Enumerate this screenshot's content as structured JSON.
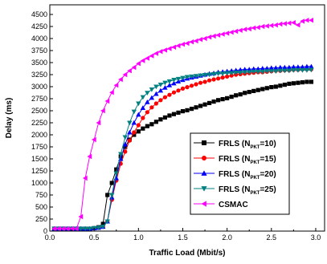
{
  "chart_data": {
    "type": "line",
    "xlabel": "Traffic Load (Mbit/s)",
    "ylabel": "Delay (ms)",
    "xlim": [
      0.0,
      3.1
    ],
    "ylim": [
      0,
      4700
    ],
    "x_ticks": [
      "0.0",
      "0.5",
      "1.0",
      "1.5",
      "2.0",
      "2.5",
      "3.0"
    ],
    "y_ticks": [
      "0",
      "250",
      "500",
      "750",
      "1000",
      "1250",
      "1500",
      "1750",
      "2000",
      "2250",
      "2500",
      "2750",
      "3000",
      "3250",
      "3500",
      "3750",
      "4000",
      "4250",
      "4500"
    ],
    "legend_position": "center-right",
    "series": [
      {
        "name": "FRLS (N_PKT=10)",
        "legend_main": "FRLS (N",
        "legend_sub": "PKT",
        "legend_tail": "=10)",
        "color": "#000000",
        "marker": "square",
        "x": [
          0.05,
          0.1,
          0.15,
          0.2,
          0.25,
          0.3,
          0.35,
          0.4,
          0.45,
          0.5,
          0.55,
          0.6,
          0.65,
          0.7,
          0.75,
          0.8,
          0.85,
          0.9,
          0.95,
          1.0,
          1.05,
          1.1,
          1.15,
          1.2,
          1.25,
          1.3,
          1.35,
          1.4,
          1.45,
          1.5,
          1.55,
          1.6,
          1.65,
          1.7,
          1.75,
          1.8,
          1.85,
          1.9,
          1.95,
          2.0,
          2.05,
          2.1,
          2.15,
          2.2,
          2.25,
          2.3,
          2.35,
          2.4,
          2.45,
          2.5,
          2.55,
          2.6,
          2.65,
          2.7,
          2.75,
          2.8,
          2.85,
          2.9,
          2.95
        ],
        "values": [
          50,
          50,
          50,
          50,
          50,
          50,
          50,
          50,
          50,
          60,
          80,
          150,
          750,
          1000,
          1280,
          1550,
          1750,
          1900,
          2000,
          2070,
          2130,
          2180,
          2220,
          2270,
          2320,
          2360,
          2400,
          2430,
          2460,
          2490,
          2510,
          2540,
          2570,
          2600,
          2630,
          2660,
          2690,
          2720,
          2740,
          2760,
          2790,
          2820,
          2840,
          2870,
          2890,
          2910,
          2930,
          2950,
          2970,
          2990,
          3000,
          3020,
          3040,
          3060,
          3070,
          3080,
          3090,
          3100,
          3100
        ]
      },
      {
        "name": "FRLS (N_PKT=15)",
        "legend_main": "FRLS (N",
        "legend_sub": "PKT",
        "legend_tail": "=15)",
        "color": "#ff0000",
        "marker": "circle",
        "x": [
          0.05,
          0.1,
          0.15,
          0.2,
          0.25,
          0.3,
          0.35,
          0.4,
          0.45,
          0.5,
          0.55,
          0.6,
          0.65,
          0.7,
          0.75,
          0.8,
          0.85,
          0.9,
          0.95,
          1.0,
          1.05,
          1.1,
          1.15,
          1.2,
          1.25,
          1.3,
          1.35,
          1.4,
          1.45,
          1.5,
          1.55,
          1.6,
          1.65,
          1.7,
          1.75,
          1.8,
          1.85,
          1.9,
          1.95,
          2.0,
          2.05,
          2.1,
          2.15,
          2.2,
          2.25,
          2.3,
          2.35,
          2.4,
          2.45,
          2.5,
          2.55,
          2.6,
          2.65,
          2.7,
          2.75,
          2.8,
          2.85,
          2.9,
          2.95
        ],
        "values": [
          50,
          50,
          50,
          50,
          50,
          50,
          50,
          50,
          50,
          60,
          70,
          90,
          200,
          650,
          1050,
          1400,
          1650,
          1880,
          2050,
          2200,
          2350,
          2470,
          2570,
          2650,
          2720,
          2780,
          2830,
          2880,
          2920,
          2960,
          2990,
          3020,
          3050,
          3080,
          3100,
          3130,
          3150,
          3170,
          3190,
          3210,
          3230,
          3250,
          3260,
          3270,
          3280,
          3290,
          3300,
          3300,
          3310,
          3320,
          3330,
          3330,
          3340,
          3340,
          3350,
          3350,
          3360,
          3360,
          3360
        ]
      },
      {
        "name": "FRLS (N_PKT=20)",
        "legend_main": "FRLS (N",
        "legend_sub": "PKT",
        "legend_tail": "=20)",
        "color": "#0000ff",
        "marker": "triangle-up",
        "x": [
          0.05,
          0.1,
          0.15,
          0.2,
          0.25,
          0.3,
          0.35,
          0.4,
          0.45,
          0.5,
          0.55,
          0.6,
          0.65,
          0.7,
          0.75,
          0.8,
          0.85,
          0.9,
          0.95,
          1.0,
          1.05,
          1.1,
          1.15,
          1.2,
          1.25,
          1.3,
          1.35,
          1.4,
          1.45,
          1.5,
          1.55,
          1.6,
          1.65,
          1.7,
          1.75,
          1.8,
          1.85,
          1.9,
          1.95,
          2.0,
          2.05,
          2.1,
          2.15,
          2.2,
          2.25,
          2.3,
          2.35,
          2.4,
          2.45,
          2.5,
          2.55,
          2.6,
          2.65,
          2.7,
          2.75,
          2.8,
          2.85,
          2.9,
          2.95
        ],
        "values": [
          50,
          50,
          50,
          50,
          50,
          50,
          50,
          50,
          50,
          60,
          70,
          90,
          200,
          700,
          1100,
          1500,
          1800,
          2050,
          2250,
          2420,
          2560,
          2680,
          2770,
          2850,
          2920,
          2980,
          3030,
          3070,
          3110,
          3140,
          3170,
          3190,
          3210,
          3230,
          3250,
          3270,
          3280,
          3300,
          3310,
          3320,
          3330,
          3340,
          3350,
          3360,
          3360,
          3370,
          3370,
          3380,
          3380,
          3390,
          3390,
          3400,
          3400,
          3400,
          3410,
          3410,
          3410,
          3420,
          3420
        ]
      },
      {
        "name": "FRLS (N_PKT=25)",
        "legend_main": "FRLS (N",
        "legend_sub": "PKT",
        "legend_tail": "=25)",
        "color": "#008080",
        "marker": "triangle-down",
        "x": [
          0.05,
          0.1,
          0.15,
          0.2,
          0.25,
          0.3,
          0.35,
          0.4,
          0.45,
          0.5,
          0.55,
          0.6,
          0.65,
          0.7,
          0.75,
          0.8,
          0.85,
          0.9,
          0.95,
          1.0,
          1.05,
          1.1,
          1.15,
          1.2,
          1.25,
          1.3,
          1.35,
          1.4,
          1.45,
          1.5,
          1.55,
          1.6,
          1.65,
          1.7,
          1.75,
          1.8,
          1.85,
          1.9,
          1.95,
          2.0,
          2.05,
          2.1,
          2.15,
          2.2,
          2.25,
          2.3,
          2.35,
          2.4,
          2.45,
          2.5,
          2.55,
          2.6,
          2.65,
          2.7,
          2.75,
          2.8,
          2.85,
          2.9,
          2.95
        ],
        "values": [
          50,
          50,
          50,
          50,
          50,
          50,
          50,
          50,
          50,
          60,
          70,
          90,
          200,
          750,
          1200,
          1600,
          1950,
          2250,
          2480,
          2650,
          2780,
          2870,
          2940,
          3000,
          3040,
          3080,
          3110,
          3140,
          3160,
          3180,
          3200,
          3210,
          3220,
          3230,
          3240,
          3250,
          3260,
          3270,
          3270,
          3280,
          3280,
          3290,
          3290,
          3300,
          3300,
          3310,
          3310,
          3310,
          3320,
          3320,
          3320,
          3330,
          3330,
          3330,
          3340,
          3340,
          3340,
          3340,
          3350
        ]
      },
      {
        "name": "CSMAC",
        "legend_main": "CSMAC",
        "legend_sub": "",
        "legend_tail": "",
        "color": "#ff00ff",
        "marker": "triangle-left",
        "x": [
          0.05,
          0.1,
          0.15,
          0.2,
          0.25,
          0.3,
          0.35,
          0.4,
          0.45,
          0.5,
          0.55,
          0.6,
          0.65,
          0.7,
          0.75,
          0.8,
          0.85,
          0.9,
          0.95,
          1.0,
          1.05,
          1.1,
          1.15,
          1.2,
          1.25,
          1.3,
          1.35,
          1.4,
          1.45,
          1.5,
          1.55,
          1.6,
          1.65,
          1.7,
          1.75,
          1.8,
          1.85,
          1.9,
          1.95,
          2.0,
          2.05,
          2.1,
          2.15,
          2.2,
          2.25,
          2.3,
          2.35,
          2.4,
          2.45,
          2.5,
          2.55,
          2.6,
          2.65,
          2.7,
          2.75,
          2.8,
          2.85,
          2.9,
          2.95
        ],
        "values": [
          50,
          50,
          50,
          50,
          50,
          50,
          300,
          1100,
          1550,
          1900,
          2250,
          2500,
          2700,
          2880,
          3030,
          3150,
          3250,
          3330,
          3400,
          3480,
          3540,
          3590,
          3640,
          3690,
          3730,
          3760,
          3790,
          3820,
          3850,
          3880,
          3900,
          3930,
          3950,
          3980,
          4000,
          4030,
          4050,
          4070,
          4090,
          4110,
          4130,
          4150,
          4170,
          4190,
          4200,
          4220,
          4230,
          4250,
          4260,
          4270,
          4280,
          4300,
          4310,
          4320,
          4330,
          4280,
          4360,
          4380,
          4380
        ]
      }
    ]
  }
}
